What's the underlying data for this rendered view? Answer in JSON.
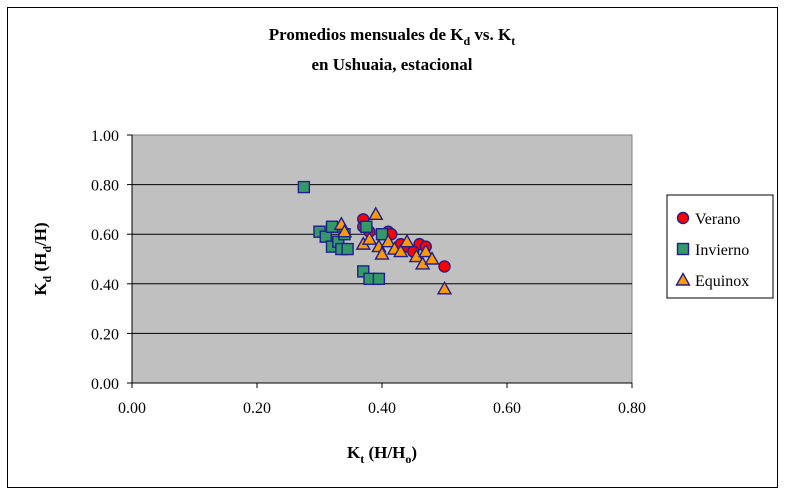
{
  "chart_data": {
    "type": "scatter",
    "title_line1": {
      "main": "Promedios mensuales de K",
      "sub1": "d",
      "mid": " vs. K",
      "sub2": "t"
    },
    "title_line2": "en Ushuaia, estacional",
    "xlabel": {
      "main": "K",
      "sub": "t",
      "rest1": " (H/H",
      "sub2": "o",
      "rest2": ")"
    },
    "ylabel": {
      "main": "K",
      "sub": "d",
      "rest1": " (H",
      "sub2": "d",
      "rest2": "/H)"
    },
    "xlim": [
      0,
      0.8
    ],
    "ylim": [
      0,
      1.0
    ],
    "xticks": [
      "0.00",
      "0.20",
      "0.40",
      "0.60",
      "0.80"
    ],
    "yticks": [
      "0.00",
      "0.20",
      "0.40",
      "0.60",
      "0.80",
      "1.00"
    ],
    "grid": "horizontal",
    "legend_position": "right",
    "plot_background": "#c0c0c0",
    "series": [
      {
        "name": "Verano",
        "marker": "circle",
        "fill": "#ff0000",
        "stroke": "#1f1f8f",
        "points": [
          [
            0.37,
            0.66
          ],
          [
            0.37,
            0.63
          ],
          [
            0.38,
            0.61
          ],
          [
            0.4,
            0.6
          ],
          [
            0.41,
            0.61
          ],
          [
            0.415,
            0.6
          ],
          [
            0.43,
            0.56
          ],
          [
            0.44,
            0.55
          ],
          [
            0.46,
            0.56
          ],
          [
            0.47,
            0.55
          ],
          [
            0.45,
            0.53
          ],
          [
            0.5,
            0.47
          ]
        ]
      },
      {
        "name": "Invierno",
        "marker": "square",
        "fill": "#339966",
        "stroke": "#1f1f8f",
        "points": [
          [
            0.275,
            0.79
          ],
          [
            0.3,
            0.61
          ],
          [
            0.31,
            0.59
          ],
          [
            0.32,
            0.63
          ],
          [
            0.32,
            0.55
          ],
          [
            0.33,
            0.57
          ],
          [
            0.335,
            0.54
          ],
          [
            0.34,
            0.6
          ],
          [
            0.345,
            0.54
          ],
          [
            0.375,
            0.63
          ],
          [
            0.4,
            0.6
          ],
          [
            0.37,
            0.45
          ],
          [
            0.38,
            0.42
          ],
          [
            0.395,
            0.42
          ]
        ]
      },
      {
        "name": "Equinox",
        "marker": "triangle",
        "fill": "#ff9900",
        "stroke": "#1f1f8f",
        "points": [
          [
            0.335,
            0.64
          ],
          [
            0.34,
            0.61
          ],
          [
            0.37,
            0.56
          ],
          [
            0.38,
            0.58
          ],
          [
            0.39,
            0.68
          ],
          [
            0.395,
            0.55
          ],
          [
            0.4,
            0.52
          ],
          [
            0.41,
            0.57
          ],
          [
            0.42,
            0.54
          ],
          [
            0.43,
            0.53
          ],
          [
            0.44,
            0.57
          ],
          [
            0.455,
            0.51
          ],
          [
            0.465,
            0.48
          ],
          [
            0.47,
            0.53
          ],
          [
            0.48,
            0.5
          ],
          [
            0.5,
            0.38
          ]
        ]
      }
    ]
  }
}
